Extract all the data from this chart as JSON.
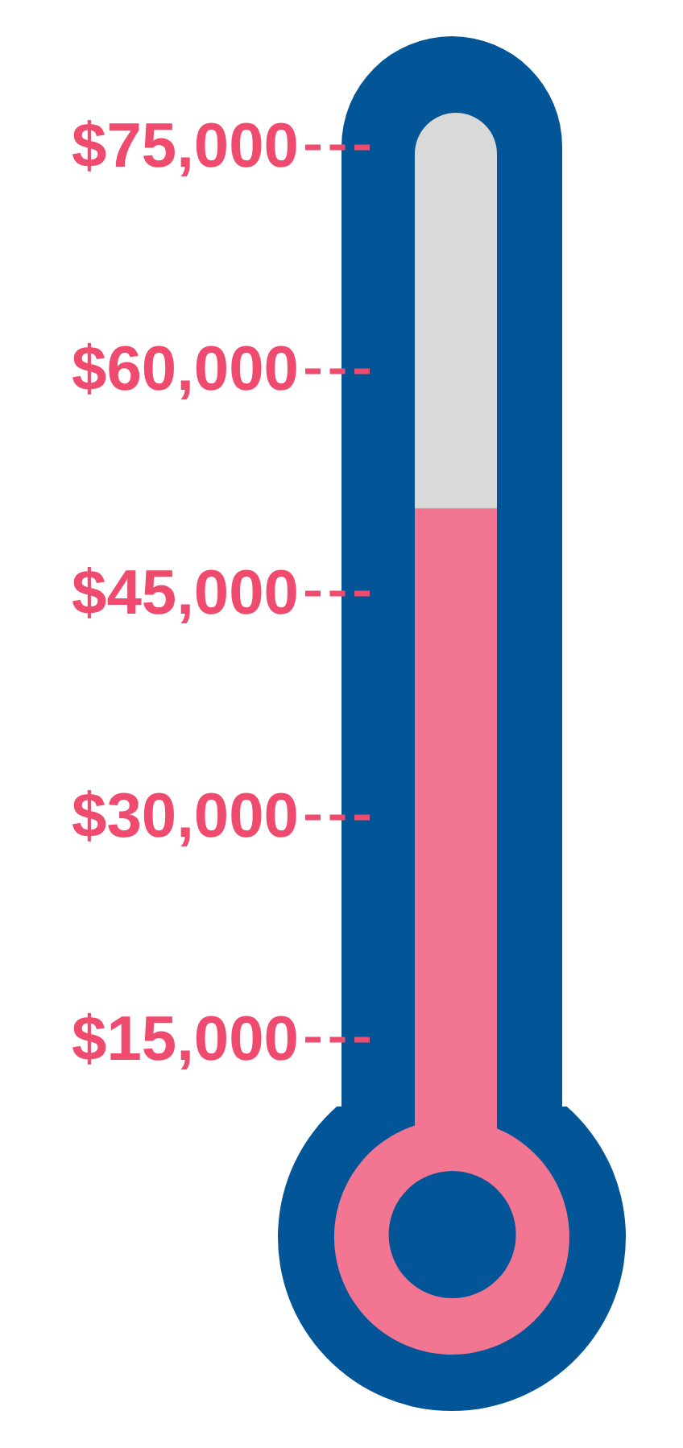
{
  "chart_data": {
    "type": "bar",
    "categories": [
      null
    ],
    "values": [
      50700
    ],
    "color": "#f27591",
    "ylim": [
      10500,
      77500
    ],
    "yticks": [
      {
        "value": 15000,
        "label": "$15,000"
      },
      {
        "value": 30000,
        "label": "$30,000"
      },
      {
        "value": 45000,
        "label": "$45,000"
      },
      {
        "value": 60000,
        "label": "$60,000"
      },
      {
        "value": 75000,
        "label": "$75,000"
      }
    ],
    "tick_labels": "y",
    "grid": false
  }
}
